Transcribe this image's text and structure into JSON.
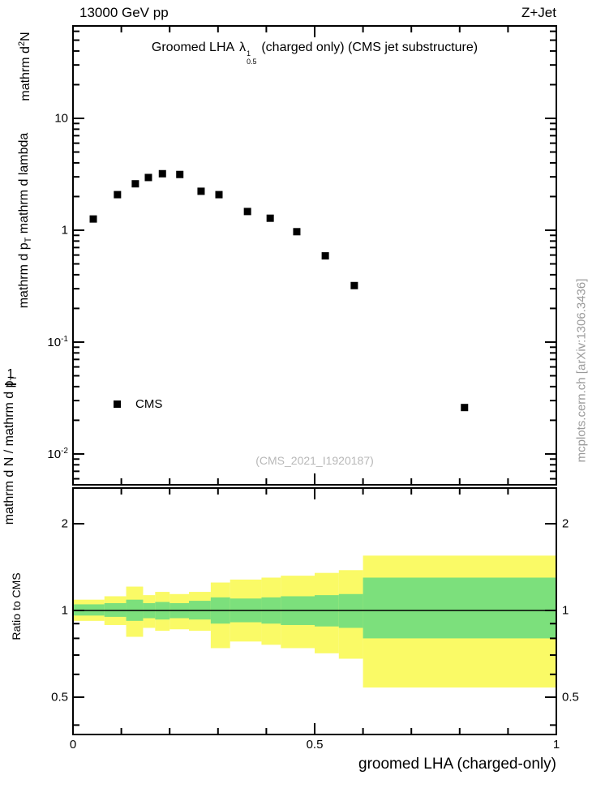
{
  "header": {
    "left": "13000 GeV pp",
    "right": "Z+Jet"
  },
  "title": {
    "prefix": "Groomed LHA",
    "lambda": "λ",
    "sup": "1",
    "sub": "0.5",
    "suffix": "(charged only) (CMS jet substructure)"
  },
  "ylabel": {
    "num2_pre": "mathrm d",
    "num2_sup": "2",
    "num2_post": "N",
    "den2_pre": "mathrm d p",
    "den2_sub": "T",
    "den2_post": " mathrm d lambda",
    "frac_num": "1",
    "den1_pre": "mathrm d N / mathrm d p",
    "den1_sub": "T"
  },
  "legend": {
    "label": "CMS"
  },
  "watermark": "(CMS_2021_I1920187)",
  "side_note": "mcplots.cern.ch [arXiv:1306.3436]",
  "ratio_label": "Ratio to CMS",
  "xlabel": "groomed LHA (charged-only)",
  "chart_data": {
    "type": "scatter",
    "title": "Groomed LHA lambda^1_0.5 (charged only) (CMS jet substructure)",
    "xlabel": "groomed LHA (charged-only)",
    "xlim": [
      0,
      1
    ],
    "xticks": [
      {
        "v": 0,
        "t": "0"
      },
      {
        "v": 0.5,
        "t": "0.5"
      },
      {
        "v": 1,
        "t": "1"
      }
    ],
    "xminor_step": 0.1,
    "main": {
      "yscale": "log",
      "ylim": [
        0.0053,
        67
      ],
      "yticks": [
        {
          "v": 10,
          "t": "10"
        },
        {
          "v": 1,
          "t": "1"
        },
        {
          "v": 0.1,
          "t": "10",
          "e": "-1"
        },
        {
          "v": 0.01,
          "t": "10",
          "e": "-2"
        }
      ],
      "series": [
        {
          "name": "CMS",
          "marker": "square",
          "color": "#000000",
          "points": [
            [
              0.042,
              1.26
            ],
            [
              0.092,
              2.08
            ],
            [
              0.129,
              2.6
            ],
            [
              0.156,
              2.96
            ],
            [
              0.185,
              3.2
            ],
            [
              0.221,
              3.15
            ],
            [
              0.265,
              2.23
            ],
            [
              0.302,
              2.08
            ],
            [
              0.361,
              1.47
            ],
            [
              0.408,
              1.28
            ],
            [
              0.463,
              0.97
            ],
            [
              0.522,
              0.59
            ],
            [
              0.582,
              0.32
            ],
            [
              0.81,
              0.026
            ]
          ]
        }
      ]
    },
    "ratio": {
      "yscale": "log",
      "ylim": [
        0.371,
        2.66
      ],
      "yticks": [
        {
          "v": 2,
          "t": "2"
        },
        {
          "v": 1,
          "t": "1"
        },
        {
          "v": 0.5,
          "t": "0.5"
        }
      ],
      "reference_line": 1,
      "colors": {
        "outer": "#fafa66",
        "inner": "#7ce07c"
      },
      "bands": [
        {
          "x1": 0.0,
          "x2": 0.065,
          "outer": [
            0.92,
            1.09
          ],
          "inner": [
            0.96,
            1.05
          ]
        },
        {
          "x1": 0.065,
          "x2": 0.11,
          "outer": [
            0.89,
            1.12
          ],
          "inner": [
            0.95,
            1.06
          ]
        },
        {
          "x1": 0.11,
          "x2": 0.145,
          "outer": [
            0.81,
            1.21
          ],
          "inner": [
            0.92,
            1.09
          ]
        },
        {
          "x1": 0.145,
          "x2": 0.17,
          "outer": [
            0.87,
            1.13
          ],
          "inner": [
            0.94,
            1.06
          ]
        },
        {
          "x1": 0.17,
          "x2": 0.2,
          "outer": [
            0.85,
            1.16
          ],
          "inner": [
            0.93,
            1.07
          ]
        },
        {
          "x1": 0.2,
          "x2": 0.24,
          "outer": [
            0.86,
            1.14
          ],
          "inner": [
            0.94,
            1.06
          ]
        },
        {
          "x1": 0.24,
          "x2": 0.285,
          "outer": [
            0.85,
            1.16
          ],
          "inner": [
            0.93,
            1.08
          ]
        },
        {
          "x1": 0.285,
          "x2": 0.325,
          "outer": [
            0.74,
            1.25
          ],
          "inner": [
            0.9,
            1.11
          ]
        },
        {
          "x1": 0.325,
          "x2": 0.39,
          "outer": [
            0.78,
            1.28
          ],
          "inner": [
            0.91,
            1.1
          ]
        },
        {
          "x1": 0.39,
          "x2": 0.43,
          "outer": [
            0.76,
            1.3
          ],
          "inner": [
            0.9,
            1.11
          ]
        },
        {
          "x1": 0.43,
          "x2": 0.5,
          "outer": [
            0.74,
            1.32
          ],
          "inner": [
            0.89,
            1.12
          ]
        },
        {
          "x1": 0.5,
          "x2": 0.55,
          "outer": [
            0.71,
            1.35
          ],
          "inner": [
            0.88,
            1.13
          ]
        },
        {
          "x1": 0.55,
          "x2": 0.6,
          "outer": [
            0.68,
            1.38
          ],
          "inner": [
            0.87,
            1.14
          ]
        },
        {
          "x1": 0.6,
          "x2": 1.0,
          "outer": [
            0.54,
            1.55
          ],
          "inner": [
            0.8,
            1.3
          ]
        }
      ]
    }
  }
}
